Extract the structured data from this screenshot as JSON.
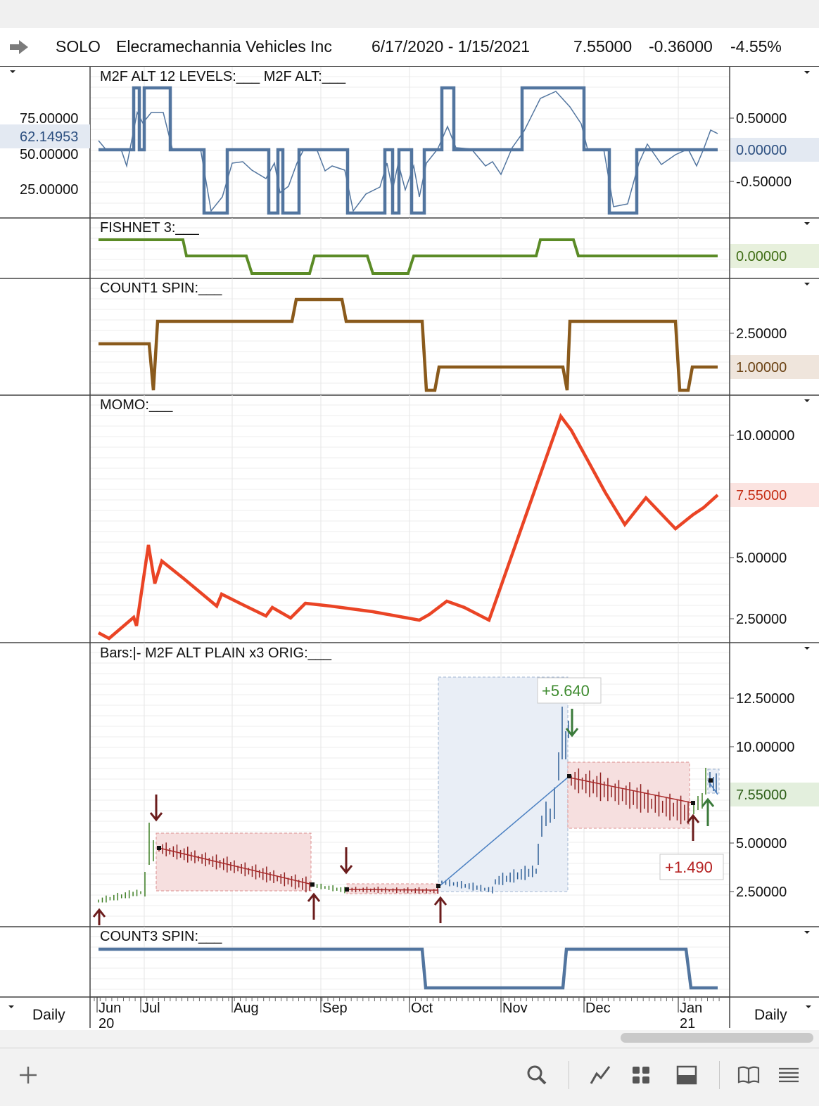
{
  "header": {
    "symbol": "SOLO",
    "company": "Elecramechannia Vehicles Inc",
    "date_range": "6/17/2020 - 1/15/2021",
    "last": "7.55000",
    "change": "-0.36000",
    "change_pct": "-4.55%"
  },
  "x_axis": {
    "labels": [
      {
        "text": "Jun",
        "sub": "20"
      },
      {
        "text": "Jul",
        "sub": ""
      },
      {
        "text": "Aug",
        "sub": ""
      },
      {
        "text": "Sep",
        "sub": ""
      },
      {
        "text": "Oct",
        "sub": ""
      },
      {
        "text": "Nov",
        "sub": ""
      },
      {
        "text": "Dec",
        "sub": ""
      },
      {
        "text": "Jan",
        "sub": "21"
      }
    ],
    "left_label": "Daily",
    "right_label": "Daily"
  },
  "chart_data": [
    {
      "type": "line",
      "title": "M2F ALT 12 LEVELS:___   M2F ALT:___",
      "left_ticks": [
        "75.00000",
        "50.00000",
        "25.00000"
      ],
      "left_highlight": "62.14953",
      "right_ticks": [
        "0.50000",
        "0.00000",
        "-0.50000"
      ],
      "right_highlight": "0.00000",
      "color": "#4f74a8"
    },
    {
      "type": "line",
      "title": "FISHNET 3:___",
      "right_highlight": "0.00000",
      "color": "#5e8c25"
    },
    {
      "type": "line",
      "title": "COUNT1 SPIN:___",
      "right_ticks": [
        "2.50000"
      ],
      "right_highlight": "1.00000",
      "color": "#8a5a1c"
    },
    {
      "type": "line",
      "title": "MOMO:___",
      "right_ticks": [
        "10.00000",
        "5.00000",
        "2.50000"
      ],
      "right_highlight": "7.55000",
      "color": "#e8472a"
    },
    {
      "type": "bar",
      "title": "Bars:|-   M2F ALT PLAIN x3 ORIG:___",
      "right_ticks": [
        "12.50000",
        "10.00000",
        "5.00000",
        "2.50000"
      ],
      "right_highlight": "7.55000",
      "annotations": [
        "+5.640",
        "+1.490"
      ]
    },
    {
      "type": "line",
      "title": "COUNT3 SPIN:___",
      "color": "#4f74a8"
    }
  ]
}
